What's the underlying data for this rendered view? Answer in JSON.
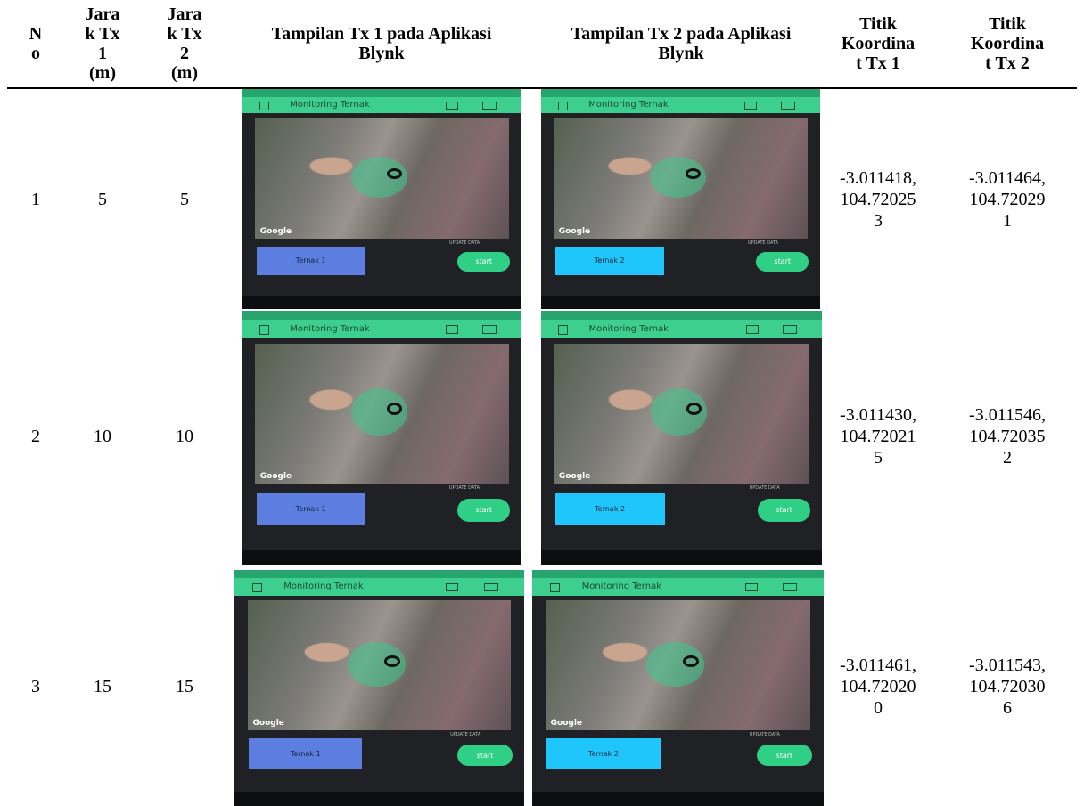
{
  "table": {
    "headers": [
      "No",
      "Jarak Tx 1 (m)",
      "Jarak Tx 2 (m)",
      "Tampilan Tx 1 pada Aplikasi Blynk",
      "Tampilan Tx 2 pada Aplikasi Blynk",
      "Titik Koordinat Tx 1",
      "Titik Koordinat Tx 2"
    ],
    "rows": [
      [
        "1",
        "5",
        "5",
        "-3.011418, 104.720253",
        "-3.011464, 104.720291"
      ],
      [
        "2",
        "10",
        "10",
        "-3.011430, 104.720215",
        "-3.011546, 104.720352"
      ],
      [
        "3",
        "15",
        "15",
        "-3.011461, 104.720200",
        "-3.011543, 104.720306"
      ]
    ]
  },
  "app": {
    "title": "Monitoring Ternak",
    "map_brand": "Google",
    "update": "UPDATE DATA",
    "button_tx1": "Ternak 1",
    "button_tx2": "Ternak 2",
    "start": "start"
  }
}
